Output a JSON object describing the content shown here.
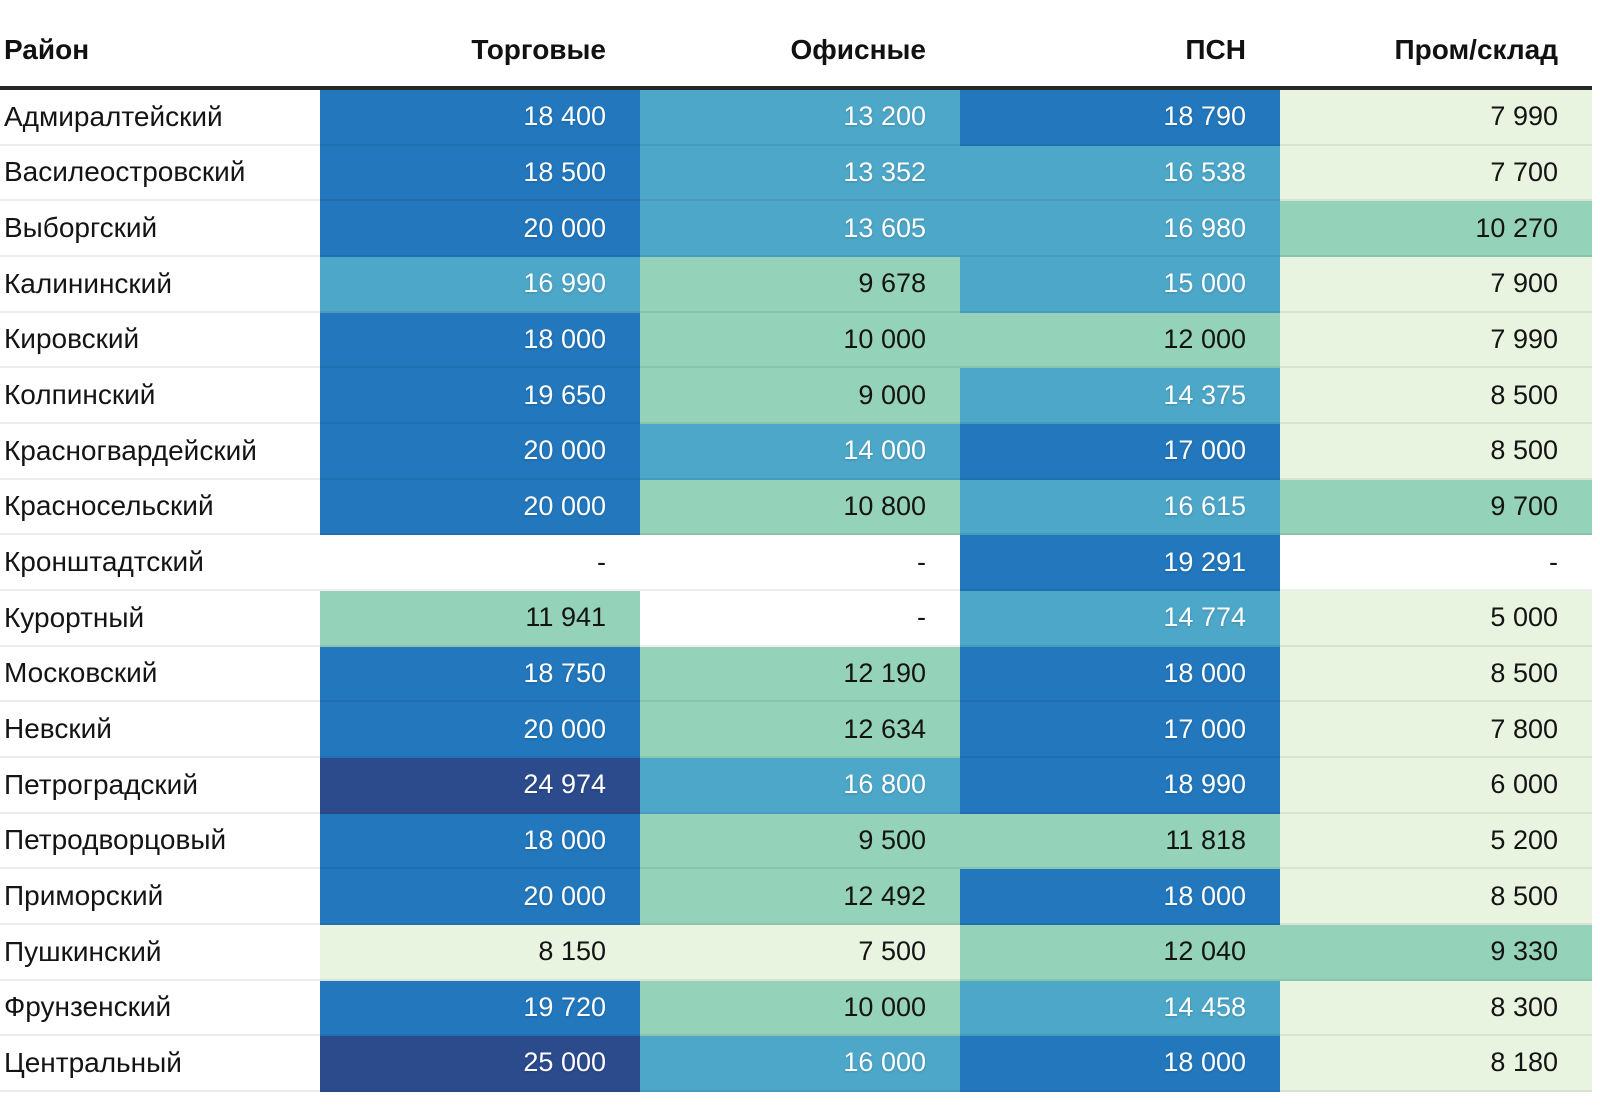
{
  "chart_data": {
    "type": "heatmap",
    "title": "",
    "row_header_label": "Район",
    "columns": [
      "Торговые",
      "Офисные",
      "ПСН",
      "Пром/склад"
    ],
    "rows": [
      "Адмиралтейский",
      "Василеостровский",
      "Выборгский",
      "Калининский",
      "Кировский",
      "Колпинский",
      "Красногвардейский",
      "Красносельский",
      "Кронштадтский",
      "Курортный",
      "Московский",
      "Невский",
      "Петроградский",
      "Петродворцовый",
      "Приморский",
      "Пушкинский",
      "Фрунзенский",
      "Центральный"
    ],
    "values": [
      [
        18400,
        13200,
        18790,
        7990
      ],
      [
        18500,
        13352,
        16538,
        7700
      ],
      [
        20000,
        13605,
        16980,
        10270
      ],
      [
        16990,
        9678,
        15000,
        7900
      ],
      [
        18000,
        10000,
        12000,
        7990
      ],
      [
        19650,
        9000,
        14375,
        8500
      ],
      [
        20000,
        14000,
        17000,
        8500
      ],
      [
        20000,
        10800,
        16615,
        9700
      ],
      [
        null,
        null,
        19291,
        null
      ],
      [
        11941,
        null,
        14774,
        5000
      ],
      [
        18750,
        12190,
        18000,
        8500
      ],
      [
        20000,
        12634,
        17000,
        7800
      ],
      [
        24974,
        16800,
        18990,
        6000
      ],
      [
        18000,
        9500,
        11818,
        5200
      ],
      [
        20000,
        12492,
        18000,
        8500
      ],
      [
        8150,
        7500,
        12040,
        9330
      ],
      [
        19720,
        10000,
        14458,
        8300
      ],
      [
        25000,
        16000,
        18000,
        8180
      ]
    ],
    "missing": "-",
    "value_range": [
      5000,
      25000
    ],
    "bucket_size": 4000,
    "legend_position": "none",
    "grid": false,
    "palette": [
      {
        "range": [
          5000,
          9000
        ],
        "bg": "#e9f4e0",
        "text": "#141414"
      },
      {
        "range": [
          9000,
          13000
        ],
        "bg": "#94d3ba",
        "text": "#141414"
      },
      {
        "range": [
          13000,
          17000
        ],
        "bg": "#4da7c9",
        "text": "#ffffff"
      },
      {
        "range": [
          17000,
          21000
        ],
        "bg": "#2277bd",
        "text": "#ffffff"
      },
      {
        "range": [
          21000,
          25000
        ],
        "bg": "#2b4b8d",
        "text": "#ffffff"
      }
    ],
    "missing_style": {
      "bg": "#ffffff",
      "text": "#141414"
    },
    "number_format": "space-thousands"
  }
}
